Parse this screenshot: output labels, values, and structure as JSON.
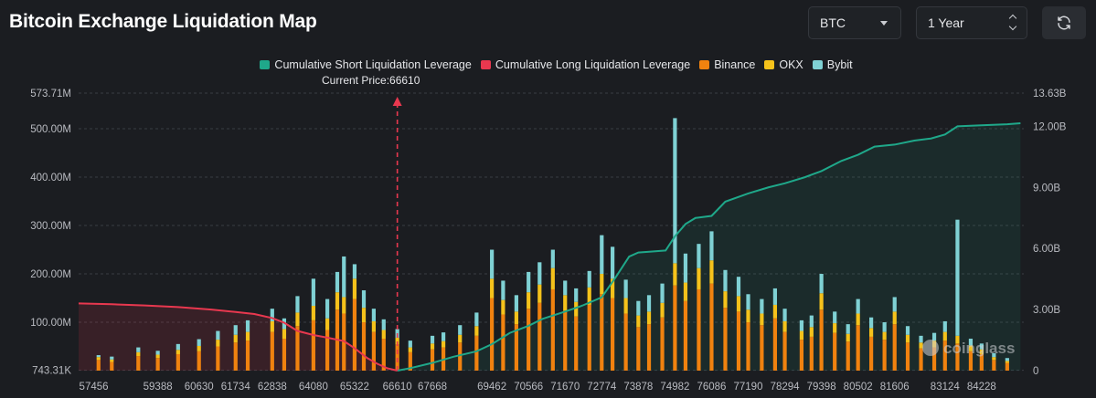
{
  "header": {
    "title": "Bitcoin Exchange Liquidation Map",
    "coin_select": "BTC",
    "range_select": "1 Year"
  },
  "legend": [
    {
      "label": "Cumulative Short Liquidation Leverage",
      "color": "#1fa88a"
    },
    {
      "label": "Cumulative Long Liquidation Leverage",
      "color": "#e8384f"
    },
    {
      "label": "Binance",
      "color": "#f0820f"
    },
    {
      "label": "OKX",
      "color": "#f5c21b"
    },
    {
      "label": "Bybit",
      "color": "#7fd1d4"
    }
  ],
  "current_price_label": "Current Price:66610",
  "watermark": "coinglass",
  "chart_data": {
    "type": "bar",
    "title": "Bitcoin Exchange Liquidation Map",
    "current_price": 66610,
    "x_tick_labels": [
      "57456",
      "59388",
      "60630",
      "61734",
      "62838",
      "64080",
      "65322",
      "66610",
      "67668",
      "69462",
      "70566",
      "71670",
      "72774",
      "73878",
      "74982",
      "76086",
      "77190",
      "78294",
      "79398",
      "80502",
      "81606",
      "83124",
      "84228"
    ],
    "x_range": [
      57000,
      85500
    ],
    "left_axis": {
      "tick_labels": [
        "743.31K",
        "100.00M",
        "200.00M",
        "300.00M",
        "400.00M",
        "500.00M",
        "573.71M"
      ],
      "tick_values": [
        0.74331,
        100,
        200,
        300,
        400,
        500,
        573.71
      ],
      "range": [
        0,
        573.71
      ],
      "unit": "M"
    },
    "right_axis": {
      "tick_labels": [
        "0",
        "3.00B",
        "6.00B",
        "9.00B",
        "12.00B",
        "13.63B"
      ],
      "tick_values": [
        0,
        3,
        6,
        9,
        12,
        13.63
      ],
      "range": [
        0,
        13.63
      ],
      "unit": "B"
    },
    "cumulative_long": {
      "name": "Cumulative Long Liquidation Leverage",
      "x": [
        57000,
        58000,
        59000,
        60000,
        61000,
        61734,
        62300,
        62838,
        63200,
        63600,
        64080,
        64500,
        65000,
        65322,
        65700,
        66000,
        66300,
        66610
      ],
      "y": [
        3.3,
        3.26,
        3.2,
        3.12,
        3.0,
        2.88,
        2.78,
        2.58,
        2.35,
        1.95,
        1.75,
        1.62,
        1.45,
        1.1,
        0.62,
        0.34,
        0.12,
        0.0
      ]
    },
    "cumulative_short": {
      "name": "Cumulative Short Liquidation Leverage",
      "x": [
        66610,
        67000,
        67668,
        68300,
        69000,
        69462,
        70000,
        70566,
        71000,
        71670,
        72200,
        72774,
        73200,
        73600,
        73878,
        74300,
        74700,
        74982,
        75300,
        75600,
        76086,
        76500,
        77190,
        77800,
        78294,
        78900,
        79398,
        80000,
        80502,
        81000,
        81606,
        82200,
        82700,
        83124,
        83500,
        84228,
        85000,
        85400
      ],
      "y": [
        0.0,
        0.12,
        0.38,
        0.68,
        0.95,
        1.3,
        1.85,
        2.2,
        2.55,
        2.9,
        3.2,
        3.6,
        4.6,
        5.6,
        5.8,
        5.85,
        5.9,
        6.6,
        7.2,
        7.5,
        7.6,
        8.3,
        8.7,
        9.0,
        9.2,
        9.5,
        9.8,
        10.3,
        10.6,
        11.0,
        11.1,
        11.3,
        11.4,
        11.6,
        12.0,
        12.05,
        12.1,
        12.15
      ]
    },
    "bar_series": [
      {
        "name": "Binance",
        "x": [
          57600,
          58000,
          58800,
          59388,
          60000,
          60630,
          61200,
          61734,
          62100,
          62838,
          63200,
          63600,
          64080,
          64500,
          64800,
          65000,
          65322,
          65600,
          65900,
          66200,
          66610,
          67000,
          67668,
          68000,
          68500,
          69000,
          69462,
          69800,
          70200,
          70566,
          70900,
          71300,
          71670,
          72000,
          72400,
          72774,
          73100,
          73500,
          73878,
          74200,
          74600,
          74982,
          75300,
          75700,
          76086,
          76500,
          76900,
          77190,
          77600,
          78000,
          78294,
          78800,
          79100,
          79398,
          79800,
          80200,
          80502,
          80900,
          81300,
          81606,
          82000,
          82400,
          82800,
          83124,
          83500,
          83900,
          84228,
          84600,
          85000
        ],
        "values": [
          22,
          18,
          30,
          26,
          34,
          40,
          50,
          58,
          62,
          80,
          66,
          92,
          104,
          84,
          126,
          118,
          148,
          100,
          80,
          66,
          54,
          38,
          44,
          48,
          58,
          72,
          150,
          116,
          96,
          128,
          140,
          168,
          124,
          112,
          136,
          158,
          150,
          118,
          90,
          96,
          110,
          176,
          144,
          168,
          180,
          130,
          122,
          100,
          94,
          108,
          80,
          64,
          70,
          126,
          78,
          60,
          94,
          70,
          64,
          96,
          58,
          46,
          48,
          62,
          56,
          40,
          34,
          22,
          16
        ]
      },
      {
        "name": "OKX",
        "x": [
          57600,
          58000,
          58800,
          59388,
          60000,
          60630,
          61200,
          61734,
          62100,
          62838,
          63200,
          63600,
          64080,
          64500,
          64800,
          65000,
          65322,
          65600,
          65900,
          66200,
          66610,
          67000,
          67668,
          68000,
          68500,
          69000,
          69462,
          69800,
          70200,
          70566,
          70900,
          71300,
          71670,
          72000,
          72400,
          72774,
          73100,
          73500,
          73878,
          74200,
          74600,
          74982,
          75300,
          75700,
          76086,
          76500,
          76900,
          77190,
          77600,
          78000,
          78294,
          78800,
          79100,
          79398,
          79800,
          80200,
          80502,
          80900,
          81300,
          81606,
          82000,
          82400,
          82800,
          83124,
          83500,
          83900,
          84228,
          84600,
          85000
        ],
        "values": [
          6,
          5,
          8,
          7,
          9,
          11,
          14,
          16,
          18,
          22,
          20,
          28,
          30,
          24,
          36,
          34,
          42,
          30,
          22,
          18,
          14,
          10,
          12,
          13,
          16,
          20,
          40,
          30,
          26,
          34,
          38,
          44,
          32,
          30,
          36,
          42,
          40,
          32,
          24,
          26,
          30,
          46,
          38,
          44,
          48,
          34,
          32,
          26,
          24,
          28,
          22,
          18,
          20,
          34,
          20,
          16,
          24,
          18,
          16,
          26,
          16,
          12,
          14,
          18,
          16,
          12,
          10,
          6,
          4
        ]
      },
      {
        "name": "Bybit",
        "x": [
          57600,
          58000,
          58800,
          59388,
          60000,
          60630,
          61200,
          61734,
          62100,
          62838,
          63200,
          63600,
          64080,
          64500,
          64800,
          65000,
          65322,
          65600,
          65900,
          66200,
          66610,
          67000,
          67668,
          68000,
          68500,
          69000,
          69462,
          69800,
          70200,
          70566,
          70900,
          71300,
          71670,
          72000,
          72400,
          72774,
          73100,
          73500,
          73878,
          74200,
          74600,
          74982,
          75300,
          75700,
          76086,
          76500,
          76900,
          77190,
          77600,
          78000,
          78294,
          78800,
          79100,
          79398,
          79800,
          80200,
          80502,
          80900,
          81300,
          81606,
          82000,
          82400,
          82800,
          83124,
          83500,
          83900,
          84228,
          84600,
          85000
        ],
        "values": [
          4,
          6,
          10,
          8,
          12,
          14,
          18,
          20,
          24,
          26,
          22,
          34,
          56,
          40,
          42,
          84,
          30,
          36,
          26,
          22,
          18,
          14,
          16,
          18,
          20,
          28,
          60,
          40,
          34,
          42,
          46,
          38,
          30,
          28,
          34,
          80,
          66,
          38,
          30,
          34,
          40,
          300,
          60,
          50,
          60,
          44,
          40,
          32,
          30,
          34,
          26,
          22,
          24,
          40,
          24,
          20,
          30,
          22,
          20,
          30,
          18,
          14,
          16,
          22,
          240,
          14,
          12,
          8,
          6
        ]
      }
    ],
    "legend_position": "top-center"
  }
}
